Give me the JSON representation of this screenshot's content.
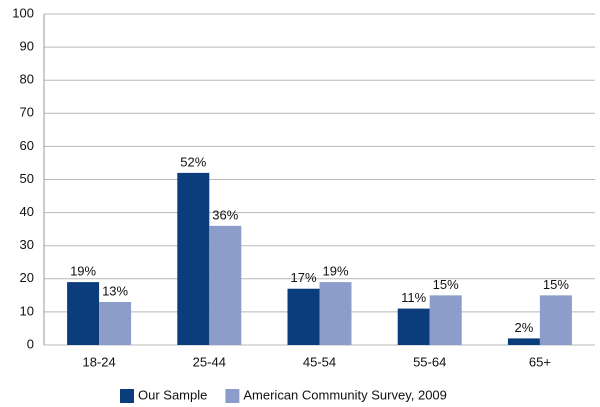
{
  "chart_data": {
    "type": "bar",
    "categories": [
      "18-24",
      "25-44",
      "45-54",
      "55-64",
      "65+"
    ],
    "series": [
      {
        "name": "Our Sample",
        "color": "#0b3c7c",
        "values": [
          19,
          52,
          17,
          11,
          2
        ],
        "value_labels": [
          "19%",
          "52%",
          "17%",
          "11%",
          "2%"
        ]
      },
      {
        "name": "American Community Survey, 2009",
        "color": "#8c9dc9",
        "values": [
          13,
          36,
          19,
          15,
          15
        ],
        "value_labels": [
          "13%",
          "36%",
          "19%",
          "15%",
          "15%"
        ]
      }
    ],
    "ylim": [
      0,
      100
    ],
    "yticks": [
      0,
      10,
      20,
      30,
      40,
      50,
      60,
      70,
      80,
      90,
      100
    ],
    "grid": true,
    "legend": "bottom"
  }
}
